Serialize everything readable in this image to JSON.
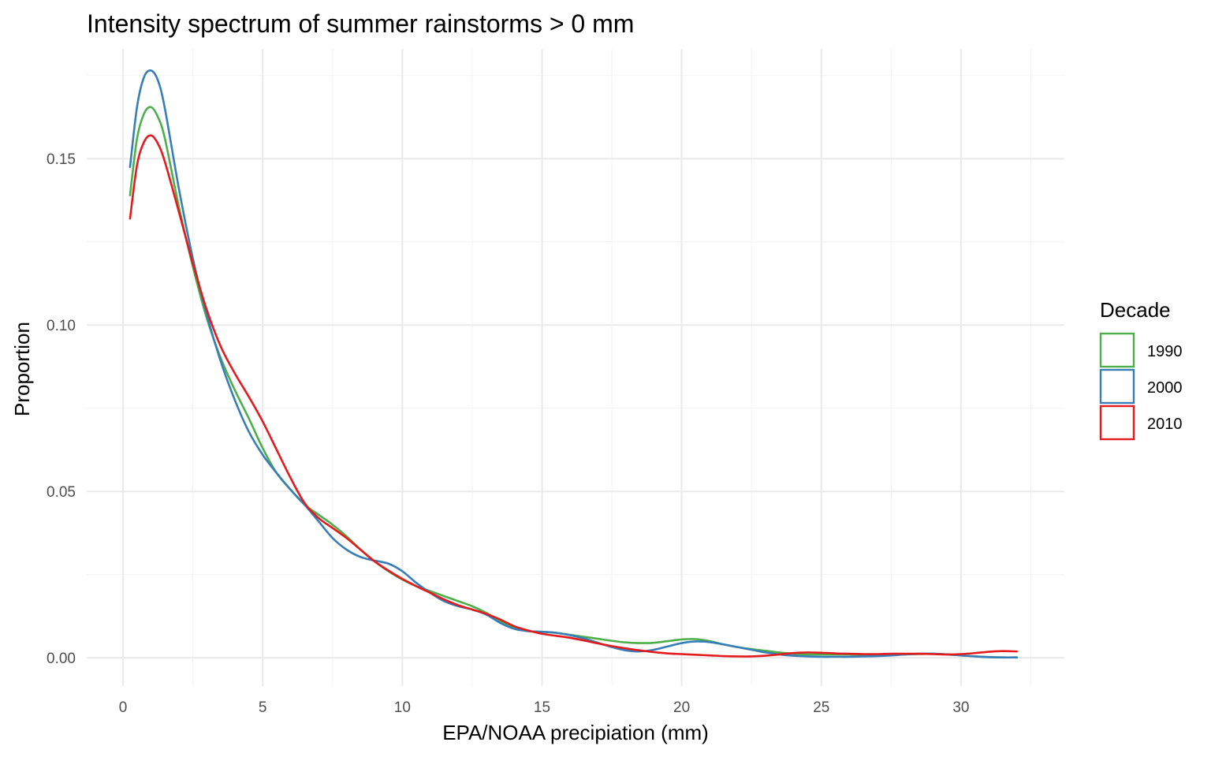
{
  "chart_data": {
    "type": "line",
    "title": "Intensity spectrum of summer rainstorms > 0 mm",
    "xlabel": "EPA/NOAA precipiation (mm)",
    "ylabel": "Proportion",
    "xlim": [
      -1.3,
      33.7
    ],
    "ylim": [
      -0.0085,
      0.183
    ],
    "x_ticks": [
      0,
      5,
      10,
      15,
      20,
      25,
      30
    ],
    "x_tick_labels": [
      "0",
      "5",
      "10",
      "15",
      "20",
      "25",
      "30"
    ],
    "x_minor_ticks": [
      2.5,
      7.5,
      12.5,
      17.5,
      22.5,
      27.5,
      32.5
    ],
    "y_ticks": [
      0,
      0.05,
      0.1,
      0.15
    ],
    "y_tick_labels": [
      "0.00",
      "0.05",
      "0.10",
      "0.15"
    ],
    "y_minor_ticks": [
      0.025,
      0.075,
      0.125,
      0.175
    ],
    "grid": true,
    "legend": {
      "title": "Decade",
      "position": "right"
    },
    "series": [
      {
        "name": "1990",
        "color": "#4daf4a",
        "x": [
          0.25,
          0.5,
          0.75,
          1.0,
          1.25,
          1.5,
          2.0,
          2.5,
          3.0,
          3.5,
          4.0,
          4.5,
          5.0,
          5.5,
          6.0,
          6.5,
          7.0,
          7.5,
          8.0,
          8.5,
          9.0,
          9.5,
          10.0,
          10.5,
          11.0,
          11.5,
          12.0,
          12.5,
          13.0,
          13.5,
          14.0,
          14.5,
          15.0,
          15.5,
          16.0,
          16.5,
          17.0,
          17.5,
          18.0,
          18.5,
          19.0,
          19.5,
          20.0,
          20.5,
          21.0,
          21.5,
          22.0,
          22.5,
          23.0,
          23.5,
          24.0,
          24.5,
          25.0,
          25.5,
          26.0,
          26.5,
          27.0,
          27.5,
          28.0,
          28.5,
          29.0,
          29.5,
          30.0,
          30.5,
          31.0,
          31.5,
          32.0
        ],
        "y": [
          0.139,
          0.156,
          0.1635,
          0.1655,
          0.1625,
          0.156,
          0.1355,
          0.1175,
          0.102,
          0.09,
          0.0805,
          0.072,
          0.063,
          0.0555,
          0.0505,
          0.046,
          0.043,
          0.04,
          0.0365,
          0.0325,
          0.029,
          0.026,
          0.0235,
          0.0215,
          0.02,
          0.0185,
          0.017,
          0.0155,
          0.0135,
          0.011,
          0.009,
          0.008,
          0.0078,
          0.0075,
          0.0069,
          0.0063,
          0.0057,
          0.0051,
          0.0046,
          0.0044,
          0.0045,
          0.005,
          0.0055,
          0.0056,
          0.005,
          0.004,
          0.0032,
          0.0026,
          0.0021,
          0.0016,
          0.0012,
          0.001,
          0.001,
          0.001,
          0.001,
          0.0009,
          0.0009,
          0.0009,
          0.001,
          0.0011,
          0.0012,
          0.001,
          0.0007,
          0.0004,
          0.0002,
          0.0001,
          0.0001
        ]
      },
      {
        "name": "2000",
        "color": "#377eb8",
        "x": [
          0.25,
          0.5,
          0.75,
          1.0,
          1.25,
          1.5,
          2.0,
          2.5,
          3.0,
          3.5,
          4.0,
          4.5,
          5.0,
          5.5,
          6.0,
          6.5,
          7.0,
          7.5,
          8.0,
          8.5,
          9.0,
          9.5,
          10.0,
          10.5,
          11.0,
          11.5,
          12.0,
          12.5,
          13.0,
          13.5,
          14.0,
          14.5,
          15.0,
          15.5,
          16.0,
          16.5,
          17.0,
          17.5,
          18.0,
          18.5,
          19.0,
          19.5,
          20.0,
          20.5,
          21.0,
          21.5,
          22.0,
          22.5,
          23.0,
          23.5,
          24.0,
          24.5,
          25.0,
          25.5,
          26.0,
          26.5,
          27.0,
          27.5,
          28.0,
          28.5,
          29.0,
          29.5,
          30.0,
          30.5,
          31.0,
          31.5,
          32.0
        ],
        "y": [
          0.1475,
          0.1655,
          0.1745,
          0.1765,
          0.1735,
          0.165,
          0.141,
          0.12,
          0.103,
          0.089,
          0.0775,
          0.068,
          0.061,
          0.0555,
          0.0505,
          0.046,
          0.041,
          0.036,
          0.0325,
          0.0303,
          0.0292,
          0.0283,
          0.026,
          0.0225,
          0.0195,
          0.017,
          0.0155,
          0.0145,
          0.013,
          0.0105,
          0.0087,
          0.008,
          0.0078,
          0.0075,
          0.0068,
          0.0058,
          0.0045,
          0.0032,
          0.0022,
          0.0019,
          0.0024,
          0.0034,
          0.0044,
          0.0049,
          0.0047,
          0.004,
          0.0032,
          0.0024,
          0.0016,
          0.001,
          0.0006,
          0.0004,
          0.0003,
          0.0003,
          0.0003,
          0.0004,
          0.0005,
          0.0007,
          0.001,
          0.0012,
          0.0012,
          0.001,
          0.0007,
          0.0004,
          0.0002,
          0.0001,
          0.0001
        ]
      },
      {
        "name": "2010",
        "color": "#e41a1c",
        "x": [
          0.25,
          0.5,
          0.75,
          1.0,
          1.25,
          1.5,
          2.0,
          2.5,
          3.0,
          3.5,
          4.0,
          4.5,
          5.0,
          5.5,
          6.0,
          6.5,
          7.0,
          7.5,
          8.0,
          8.5,
          9.0,
          9.5,
          10.0,
          10.5,
          11.0,
          11.5,
          12.0,
          12.5,
          13.0,
          13.5,
          14.0,
          14.5,
          15.0,
          15.5,
          16.0,
          16.5,
          17.0,
          17.5,
          18.0,
          18.5,
          19.0,
          19.5,
          20.0,
          20.5,
          21.0,
          21.5,
          22.0,
          22.5,
          23.0,
          23.5,
          24.0,
          24.5,
          25.0,
          25.5,
          26.0,
          26.5,
          27.0,
          27.5,
          28.0,
          28.5,
          29.0,
          29.5,
          30.0,
          30.5,
          31.0,
          31.5,
          32.0
        ],
        "y": [
          0.132,
          0.148,
          0.155,
          0.157,
          0.1545,
          0.149,
          0.134,
          0.1185,
          0.1045,
          0.0935,
          0.0855,
          0.0785,
          0.071,
          0.0625,
          0.054,
          0.0465,
          0.042,
          0.039,
          0.036,
          0.0325,
          0.029,
          0.0262,
          0.0237,
          0.0215,
          0.0195,
          0.0175,
          0.0158,
          0.0145,
          0.0132,
          0.0115,
          0.0095,
          0.0082,
          0.0072,
          0.0066,
          0.006,
          0.0052,
          0.0043,
          0.0035,
          0.0028,
          0.0022,
          0.0017,
          0.0013,
          0.0011,
          0.0009,
          0.0007,
          0.0005,
          0.0004,
          0.0004,
          0.0006,
          0.001,
          0.0014,
          0.0016,
          0.0015,
          0.0013,
          0.0012,
          0.0011,
          0.0011,
          0.0012,
          0.0012,
          0.0012,
          0.0011,
          0.001,
          0.0011,
          0.0014,
          0.0018,
          0.002,
          0.0019
        ]
      }
    ]
  }
}
